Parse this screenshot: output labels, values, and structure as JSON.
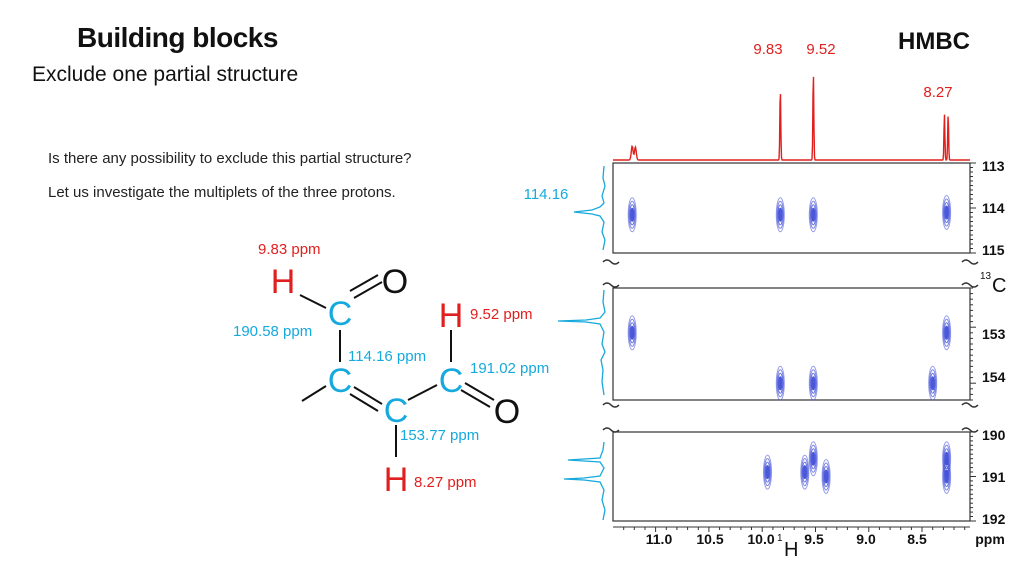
{
  "slide": {
    "title": "Building blocks",
    "subtitle": "Exclude one partial structure",
    "badge": "HMBC",
    "question_1": "Is there any possibility to exclude this partial structure?",
    "question_2": "Let us investigate the multiplets of the three protons."
  },
  "structure": {
    "atoms": {
      "h_aldehyde_1": "H",
      "o_1": "O",
      "c_carbonyl_1": "C",
      "h_aldehyde_2": "H",
      "c_quaternary": "C",
      "c_carbonyl_2": "C",
      "c_methine": "C",
      "o_2": "O",
      "h_vinyl": "H"
    },
    "labels": {
      "h_aldehyde_1": "9.83 ppm",
      "c_carbonyl_1": "190.58 ppm",
      "h_aldehyde_2": "9.52 ppm",
      "c_quaternary": "114.16 ppm",
      "c_carbonyl_2": "191.02 ppm",
      "c_methine": "153.77 ppm",
      "h_vinyl": "8.27 ppm"
    }
  },
  "colors": {
    "proton": "#e0201f",
    "carbon": "#16a9dd",
    "crosspeak": "#3a48d6",
    "bond": "#111111"
  },
  "chart_data": {
    "type": "heatmap",
    "title": "HMBC",
    "x_axis": {
      "label_sup": "1",
      "label": "H",
      "unit": "ppm",
      "ticks": [
        "11.0",
        "10.5",
        "10.0",
        "9.5",
        "9.0",
        "8.5"
      ],
      "range": [
        11.4,
        8.05
      ],
      "reversed": true
    },
    "y_axis": {
      "label_sup": "13",
      "label": "C",
      "panels": [
        {
          "ticks": [
            "113",
            "114",
            "115"
          ],
          "range": [
            113,
            115
          ]
        },
        {
          "ticks": [
            "153",
            "154"
          ],
          "range": [
            152.3,
            154.3
          ]
        },
        {
          "ticks": [
            "190",
            "191",
            "192"
          ],
          "range": [
            190,
            192
          ]
        }
      ]
    },
    "proton_peak_labels": [
      "9.83",
      "9.52",
      "8.27"
    ],
    "carbon_peak_label": "114.16",
    "proton_peaks_ppm": [
      11.22,
      9.83,
      9.52,
      8.27
    ],
    "cross_peaks": [
      {
        "panel": 0,
        "h": 11.22,
        "c": 114.15
      },
      {
        "panel": 0,
        "h": 9.83,
        "c": 114.15
      },
      {
        "panel": 0,
        "h": 9.52,
        "c": 114.15
      },
      {
        "panel": 0,
        "h": 8.27,
        "c": 114.1
      },
      {
        "panel": 1,
        "h": 11.22,
        "c": 153.1
      },
      {
        "panel": 1,
        "h": 8.27,
        "c": 153.1
      },
      {
        "panel": 1,
        "h": 9.83,
        "c": 154.0
      },
      {
        "panel": 1,
        "h": 9.52,
        "c": 154.0
      },
      {
        "panel": 1,
        "h": 8.4,
        "c": 154.0
      },
      {
        "panel": 2,
        "h": 9.52,
        "c": 190.6
      },
      {
        "panel": 2,
        "h": 9.6,
        "c": 190.9
      },
      {
        "panel": 2,
        "h": 9.4,
        "c": 191.0
      },
      {
        "panel": 2,
        "h": 9.95,
        "c": 190.9
      },
      {
        "panel": 2,
        "h": 8.27,
        "c": 190.6
      },
      {
        "panel": 2,
        "h": 8.27,
        "c": 191.0
      }
    ]
  }
}
